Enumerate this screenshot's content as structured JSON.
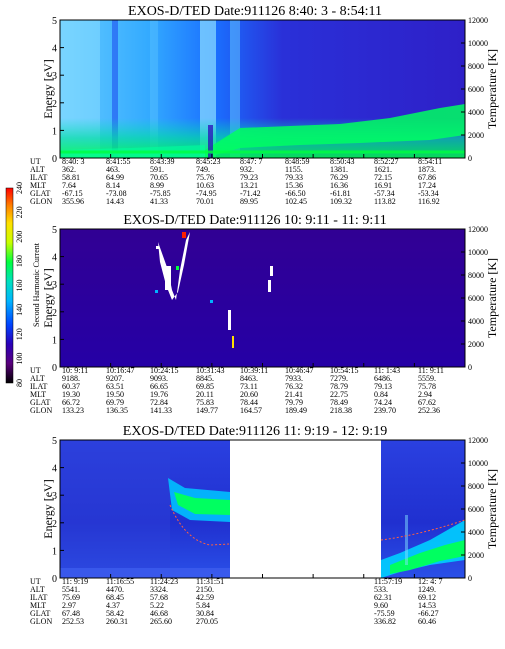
{
  "chart_data": [
    {
      "type": "heatmap",
      "title": "EXOS-D/TED   Date:911126  8:40: 3 - 8:54:11",
      "ylabel": "Energy [eV]",
      "ylabel2": "Temperature [K]",
      "ylim": [
        0,
        5
      ],
      "yticks": [
        "0",
        "1",
        "2",
        "3",
        "4",
        "5"
      ],
      "y2lim": [
        0,
        12000
      ],
      "y2ticks": [
        "0",
        "2000",
        "4000",
        "6000",
        "8000",
        "10000",
        "12000"
      ],
      "rows": [
        {
          "label": "UT",
          "values": [
            "8:40: 3",
            "8:41:55",
            "8:43:39",
            "8:45:23",
            "8:47: 7",
            "8:48:59",
            "8:50:43",
            "8:52:27",
            "8:54:11"
          ]
        },
        {
          "label": "ALT",
          "values": [
            "362.",
            "463.",
            "591.",
            "749.",
            "932.",
            "1155.",
            "1381.",
            "1621.",
            "1873."
          ]
        },
        {
          "label": "ILAT",
          "values": [
            "58.81",
            "64.99",
            "70.65",
            "75.76",
            "79.23",
            "79.33",
            "76.29",
            "72.15",
            "67.86"
          ]
        },
        {
          "label": "MLT",
          "values": [
            "7.64",
            "8.14",
            "8.99",
            "10.63",
            "13.21",
            "15.36",
            "16.36",
            "16.91",
            "17.24"
          ]
        },
        {
          "label": "GLAT",
          "values": [
            "-67.15",
            "-73.08",
            "-75.85",
            "-74.95",
            "-71.42",
            "-66.50",
            "-61.81",
            "-57.34",
            "-53.34"
          ]
        },
        {
          "label": "GLON",
          "values": [
            "355.96",
            "14.43",
            "41.33",
            "70.01",
            "89.95",
            "102.45",
            "109.32",
            "113.82",
            "116.92"
          ]
        }
      ]
    },
    {
      "type": "heatmap",
      "title": "EXOS-D/TED   Date:911126  10: 9:11 - 11: 9:11",
      "ylabel": "Energy [eV]",
      "ylabel2": "Temperature [K]",
      "ylim": [
        0,
        5
      ],
      "yticks": [
        "0",
        "1",
        "2",
        "3",
        "4",
        "5"
      ],
      "y2lim": [
        0,
        12000
      ],
      "y2ticks": [
        "0",
        "2000",
        "4000",
        "6000",
        "8000",
        "10000",
        "12000"
      ],
      "rows": [
        {
          "label": "UT",
          "values": [
            "10: 9:11",
            "10:16:47",
            "10:24:15",
            "10:31:43",
            "10:39:11",
            "10:46:47",
            "10:54:15",
            "11: 1:43",
            "11: 9:11"
          ]
        },
        {
          "label": "ALT",
          "values": [
            "9188.",
            "9207.",
            "9093.",
            "8845.",
            "8463.",
            "7933.",
            "7279.",
            "6486.",
            "5559."
          ]
        },
        {
          "label": "ILAT",
          "values": [
            "60.37",
            "63.51",
            "66.65",
            "69.85",
            "73.11",
            "76.32",
            "78.79",
            "79.13",
            "75.78"
          ]
        },
        {
          "label": "MLT",
          "values": [
            "19.30",
            "19.50",
            "19.76",
            "20.11",
            "20.60",
            "21.41",
            "22.75",
            "0.84",
            "2.94"
          ]
        },
        {
          "label": "GLAT",
          "values": [
            "66.72",
            "69.79",
            "72.84",
            "75.83",
            "78.44",
            "79.79",
            "78.49",
            "74.24",
            "67.62"
          ]
        },
        {
          "label": "GLON",
          "values": [
            "133.23",
            "136.35",
            "141.33",
            "149.77",
            "164.57",
            "189.49",
            "218.38",
            "239.70",
            "252.36"
          ]
        }
      ]
    },
    {
      "type": "heatmap",
      "title": "EXOS-D/TED   Date:911126  11: 9:19 - 12: 9:19",
      "ylabel": "Energy [eV]",
      "ylabel2": "Temperature [K]",
      "ylim": [
        0,
        5
      ],
      "yticks": [
        "0",
        "1",
        "2",
        "3",
        "4",
        "5"
      ],
      "y2lim": [
        0,
        12000
      ],
      "y2ticks": [
        "0",
        "2000",
        "4000",
        "6000",
        "8000",
        "10000",
        "12000"
      ],
      "rows": [
        {
          "label": "UT",
          "values": [
            "11: 9:19",
            "11:16:55",
            "11:24:23",
            "11:31:51",
            "",
            "",
            "",
            "11:57:19",
            "12: 4: 7"
          ]
        },
        {
          "label": "ALT",
          "values": [
            "5541.",
            "4470.",
            "3324.",
            "2150.",
            "",
            "",
            "",
            "533.",
            "1249."
          ]
        },
        {
          "label": "ILAT",
          "values": [
            "75.69",
            "68.45",
            "57.68",
            "42.59",
            "",
            "",
            "",
            "62.31",
            "69.12"
          ]
        },
        {
          "label": "MLT",
          "values": [
            "2.97",
            "4.37",
            "5.22",
            "5.84",
            "",
            "",
            "",
            "9.60",
            "14.53"
          ]
        },
        {
          "label": "GLAT",
          "values": [
            "67.48",
            "58.42",
            "46.68",
            "30.84",
            "",
            "",
            "",
            "-75.59",
            "-66.27"
          ]
        },
        {
          "label": "GLON",
          "values": [
            "252.53",
            "260.31",
            "265.60",
            "270.05",
            "",
            "",
            "",
            "336.82",
            "60.46"
          ]
        }
      ]
    }
  ],
  "colorbar": {
    "label": "Second Harmonic Current",
    "ticks": [
      "80",
      "100",
      "120",
      "140",
      "160",
      "180",
      "200",
      "220",
      "240"
    ],
    "colors": [
      "#000000",
      "#5a007d",
      "#2a00b8",
      "#0044ff",
      "#00b4ff",
      "#00e0c0",
      "#00ff40",
      "#c8ff00",
      "#ffe000",
      "#ff8000",
      "#ff0000"
    ]
  },
  "colors": {
    "background": "#ffffff",
    "low": "#2a00b8",
    "mid": "#00b4ff",
    "high": "#00ff40"
  }
}
